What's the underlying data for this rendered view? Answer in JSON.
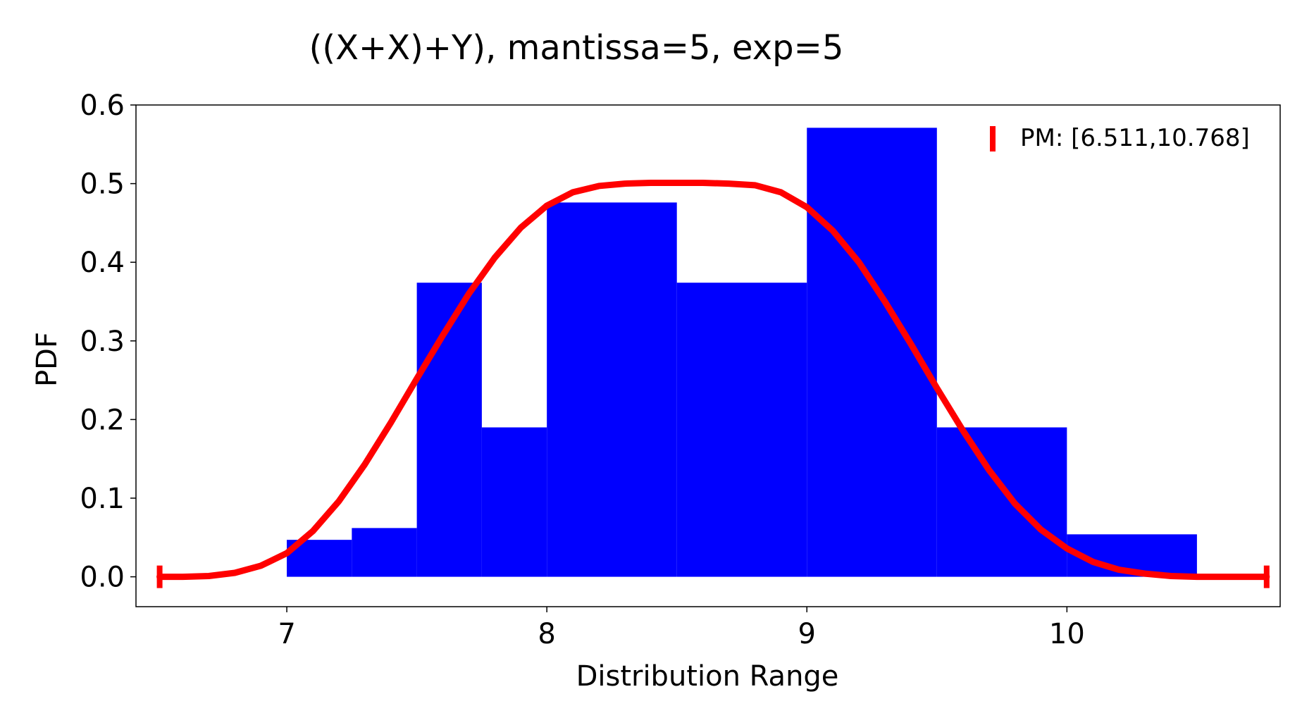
{
  "chart_data": {
    "type": "bar",
    "title": "((X+X)+Y), mantissa=5, exp=5",
    "xlabel": "Distribution Range",
    "ylabel": "PDF",
    "xlim": [
      6.42,
      10.82
    ],
    "ylim": [
      -0.038,
      0.6
    ],
    "xticks": [
      7,
      8,
      9,
      10
    ],
    "xtick_labels": [
      "7",
      "8",
      "9",
      "10"
    ],
    "yticks": [
      0.0,
      0.1,
      0.2,
      0.3,
      0.4,
      0.5,
      0.6
    ],
    "ytick_labels": [
      "0.0",
      "0.1",
      "0.2",
      "0.3",
      "0.4",
      "0.5",
      "0.6"
    ],
    "grid": false,
    "legend_position": "top-right",
    "histogram": {
      "color": "#0000ff",
      "bins": [
        {
          "x0": 7.0,
          "x1": 7.25,
          "value": 0.047
        },
        {
          "x0": 7.25,
          "x1": 7.5,
          "value": 0.062
        },
        {
          "x0": 7.5,
          "x1": 7.75,
          "value": 0.374
        },
        {
          "x0": 7.75,
          "x1": 8.0,
          "value": 0.19
        },
        {
          "x0": 8.0,
          "x1": 8.5,
          "value": 0.476
        },
        {
          "x0": 8.5,
          "x1": 9.0,
          "value": 0.374
        },
        {
          "x0": 9.0,
          "x1": 9.5,
          "value": 0.571
        },
        {
          "x0": 9.5,
          "x1": 10.0,
          "value": 0.19
        },
        {
          "x0": 10.0,
          "x1": 10.5,
          "value": 0.054
        }
      ]
    },
    "pdf_curve": {
      "color": "#ff0000",
      "range_label": "PM: [6.511,10.768]",
      "range": [
        6.511,
        10.768
      ],
      "points": [
        [
          6.511,
          0.0
        ],
        [
          6.6,
          0.0
        ],
        [
          6.7,
          0.001
        ],
        [
          6.8,
          0.005
        ],
        [
          6.9,
          0.014
        ],
        [
          7.0,
          0.03
        ],
        [
          7.1,
          0.058
        ],
        [
          7.2,
          0.096
        ],
        [
          7.3,
          0.143
        ],
        [
          7.4,
          0.196
        ],
        [
          7.5,
          0.252
        ],
        [
          7.6,
          0.307
        ],
        [
          7.7,
          0.36
        ],
        [
          7.8,
          0.406
        ],
        [
          7.9,
          0.444
        ],
        [
          8.0,
          0.472
        ],
        [
          8.1,
          0.489
        ],
        [
          8.2,
          0.497
        ],
        [
          8.3,
          0.5
        ],
        [
          8.4,
          0.501
        ],
        [
          8.5,
          0.501
        ],
        [
          8.6,
          0.501
        ],
        [
          8.7,
          0.5
        ],
        [
          8.8,
          0.498
        ],
        [
          8.9,
          0.489
        ],
        [
          9.0,
          0.47
        ],
        [
          9.1,
          0.44
        ],
        [
          9.2,
          0.4
        ],
        [
          9.3,
          0.35
        ],
        [
          9.4,
          0.296
        ],
        [
          9.5,
          0.24
        ],
        [
          9.6,
          0.186
        ],
        [
          9.7,
          0.136
        ],
        [
          9.8,
          0.093
        ],
        [
          9.9,
          0.06
        ],
        [
          10.0,
          0.036
        ],
        [
          10.1,
          0.019
        ],
        [
          10.2,
          0.009
        ],
        [
          10.3,
          0.004
        ],
        [
          10.4,
          0.001
        ],
        [
          10.5,
          0.0
        ],
        [
          10.6,
          0.0
        ],
        [
          10.768,
          0.0
        ]
      ]
    }
  }
}
